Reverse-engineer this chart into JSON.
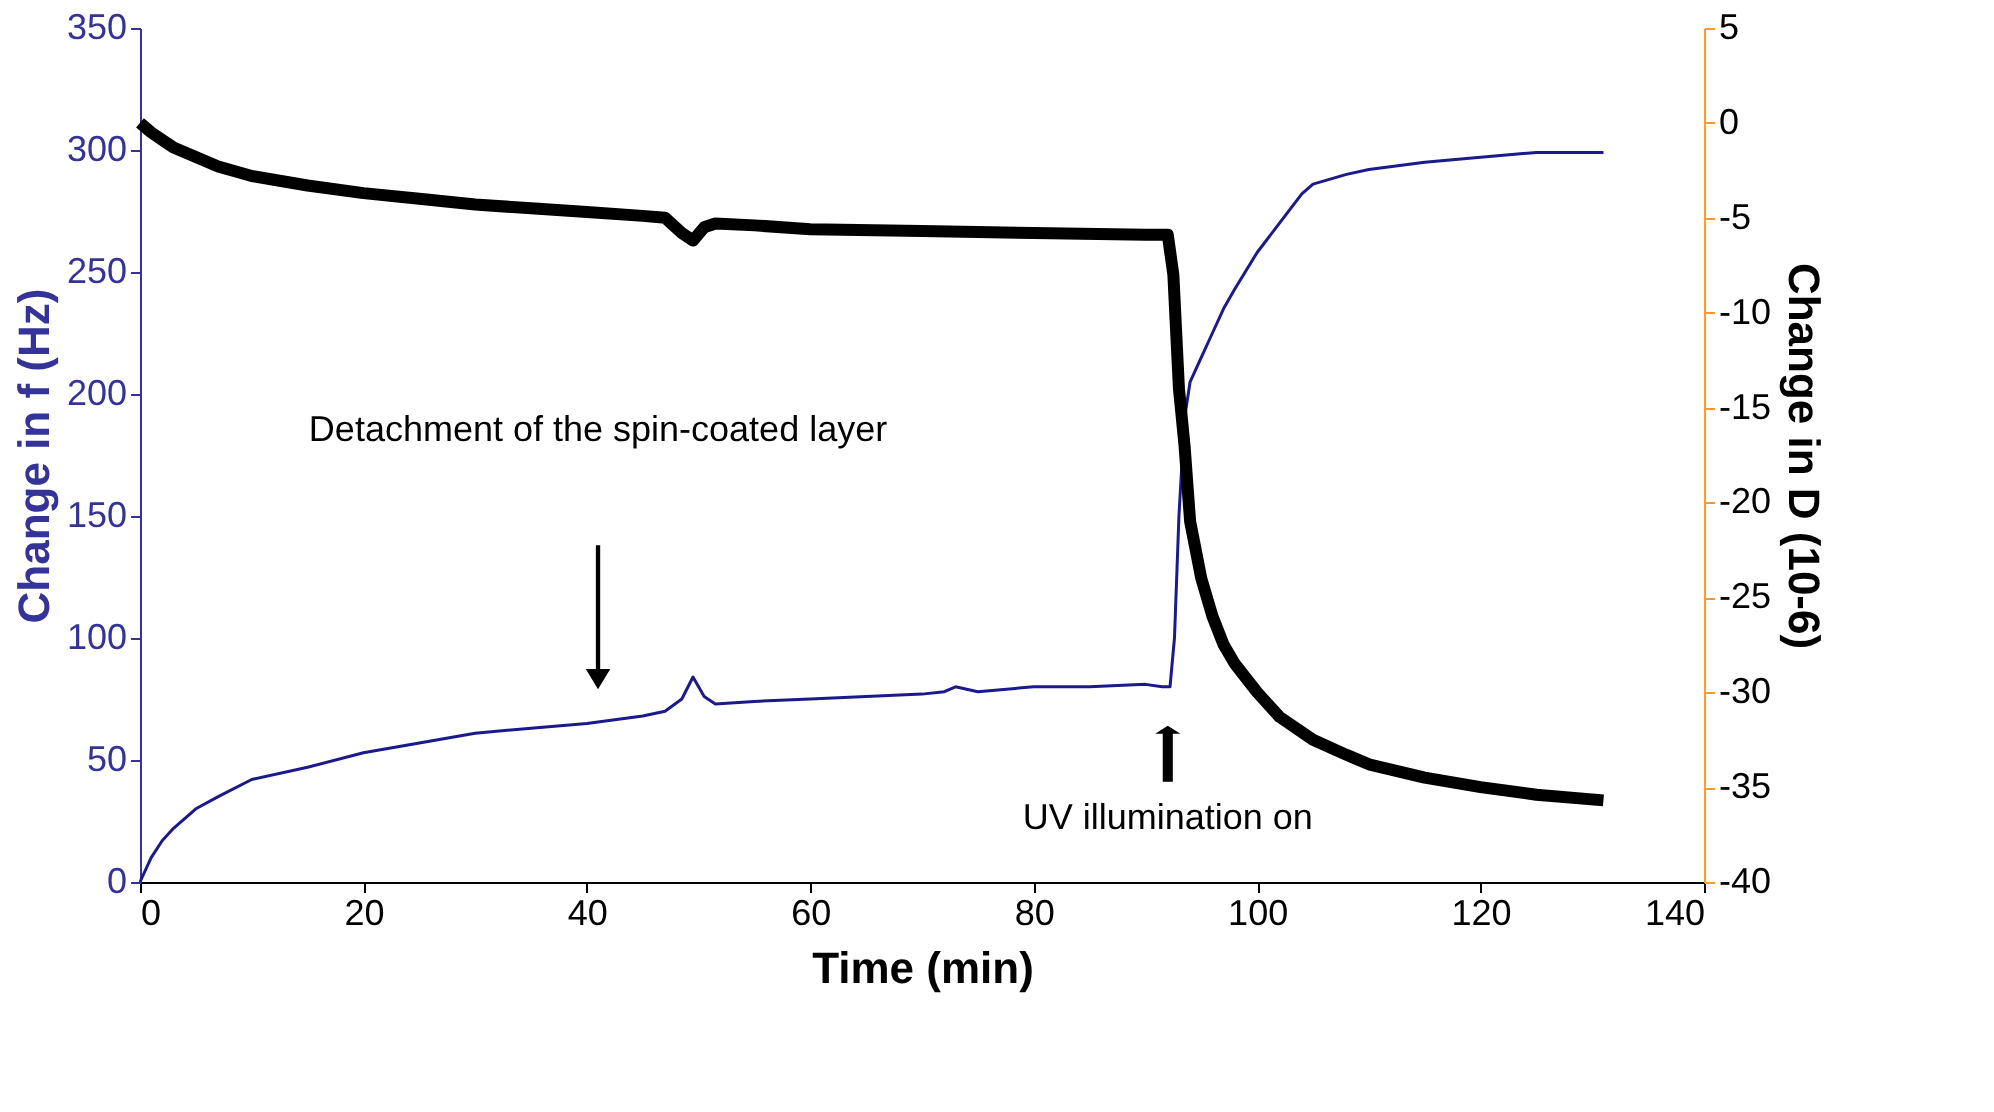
{
  "chart_data": {
    "type": "line",
    "xlabel": "Time (min)",
    "ylabel": "Change in f (Hz)",
    "y2label": "Change in D (10-6)",
    "xlim": [
      0,
      140
    ],
    "xticks": [
      0,
      20,
      40,
      60,
      80,
      100,
      120,
      140
    ],
    "ylim": [
      0,
      350
    ],
    "yticks": [
      0,
      50,
      100,
      150,
      200,
      250,
      300,
      350
    ],
    "y2lim": [
      -40,
      5
    ],
    "y2ticks": [
      -40,
      -35,
      -30,
      -25,
      -20,
      -15,
      -10,
      -5,
      0,
      5
    ],
    "grid": false,
    "marker": "none",
    "line_style": "solid",
    "series": [
      {
        "color": "#1a1a8c",
        "x": [
          0,
          1,
          2,
          3,
          5,
          7,
          10,
          15,
          20,
          25,
          30,
          35,
          40,
          45,
          47,
          48.5,
          49.5,
          50.5,
          51.5,
          55,
          60,
          65,
          70,
          72,
          73,
          75,
          80,
          85,
          90,
          91.5,
          92.2,
          92.6,
          93,
          93.5,
          94,
          95,
          96,
          97,
          98,
          100,
          102,
          104,
          105,
          108,
          110,
          115,
          120,
          125,
          131
        ],
        "values": [
          0,
          10,
          17,
          22,
          30,
          35,
          42,
          47,
          53,
          57,
          61,
          63,
          65,
          68,
          70,
          75,
          84,
          76,
          73,
          74,
          75,
          76,
          77,
          78,
          80,
          78,
          80,
          80,
          81,
          80,
          80,
          100,
          150,
          190,
          205,
          215,
          225,
          235,
          243,
          258,
          270,
          282,
          286,
          290,
          292,
          295,
          297,
          299,
          299
        ]
      },
      {
        "color": "#000000",
        "axis": "y2",
        "x": [
          0,
          1,
          2,
          3,
          5,
          7,
          10,
          15,
          20,
          25,
          30,
          35,
          40,
          45,
          47,
          48.5,
          49.5,
          50.5,
          51.5,
          55,
          60,
          70,
          80,
          90,
          92,
          92.5,
          93,
          93.5,
          94,
          95,
          96,
          97,
          98,
          100,
          102,
          105,
          108,
          110,
          115,
          120,
          125,
          131
        ],
        "values": [
          0,
          -0.5,
          -0.9,
          -1.3,
          -1.8,
          -2.3,
          -2.8,
          -3.3,
          -3.7,
          -4,
          -4.3,
          -4.5,
          -4.7,
          -4.9,
          -5,
          -5.8,
          -6.2,
          -5.5,
          -5.3,
          -5.4,
          -5.6,
          -5.7,
          -5.8,
          -5.9,
          -5.9,
          -8,
          -14,
          -17,
          -21,
          -24,
          -26,
          -27.5,
          -28.5,
          -30,
          -31.3,
          -32.5,
          -33.3,
          -33.8,
          -34.5,
          -35,
          -35.4,
          -35.7
        ]
      }
    ],
    "annotations": [
      "Detachment of the spin-coated layer",
      "UV illumination on"
    ]
  }
}
